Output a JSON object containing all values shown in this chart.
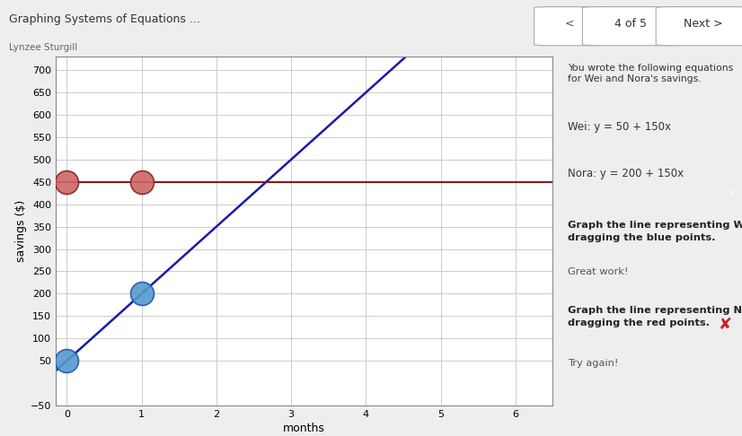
{
  "title": "Graphing Systems of Equations ...",
  "subtitle": "Lynzee Sturgill",
  "nav_text": "4 of 5",
  "xlabel": "months",
  "ylabel": "savings ($)",
  "xlim": [
    -0.15,
    6.5
  ],
  "ylim": [
    -50,
    730
  ],
  "xticks": [
    0,
    1,
    2,
    3,
    4,
    5,
    6
  ],
  "yticks": [
    -50,
    50,
    100,
    150,
    200,
    250,
    300,
    350,
    400,
    450,
    500,
    550,
    600,
    650,
    700
  ],
  "wei_eq": "Wei: y = 50 + 150x",
  "nora_eq": "Nora: y = 200 + 150x",
  "wei_line_color": "#1a1aaa",
  "nora_line_color": "#8B1a1a",
  "nora_line_displayed_y": 450,
  "blue_points": [
    [
      0,
      50
    ],
    [
      1,
      200
    ]
  ],
  "red_points": [
    [
      0,
      450
    ],
    [
      1,
      450
    ]
  ],
  "blue_point_color": "#5599cc",
  "red_point_color": "#cc6666",
  "point_size": 350,
  "bg_color": "#eeeeee",
  "plot_bg_color": "#ffffff",
  "grid_color": "#cccccc",
  "text_intro": "You wrote the following equations for Wei and Nora's savings.",
  "text_wei_task_bold": "Graph the line representing Wei’s savings over time by\ndragging the blue points.",
  "text_wei_result": "Great work!",
  "text_nora_task_bold": "Graph the line representing Nora’s savings over time by\ndragging the red points.",
  "text_nora_result": "Try again!",
  "checkmark_color": "#44aa44",
  "x_mark_color": "#cc2222",
  "header_bg": "#e8e8e8",
  "nav_bg": "#e8e8e8"
}
